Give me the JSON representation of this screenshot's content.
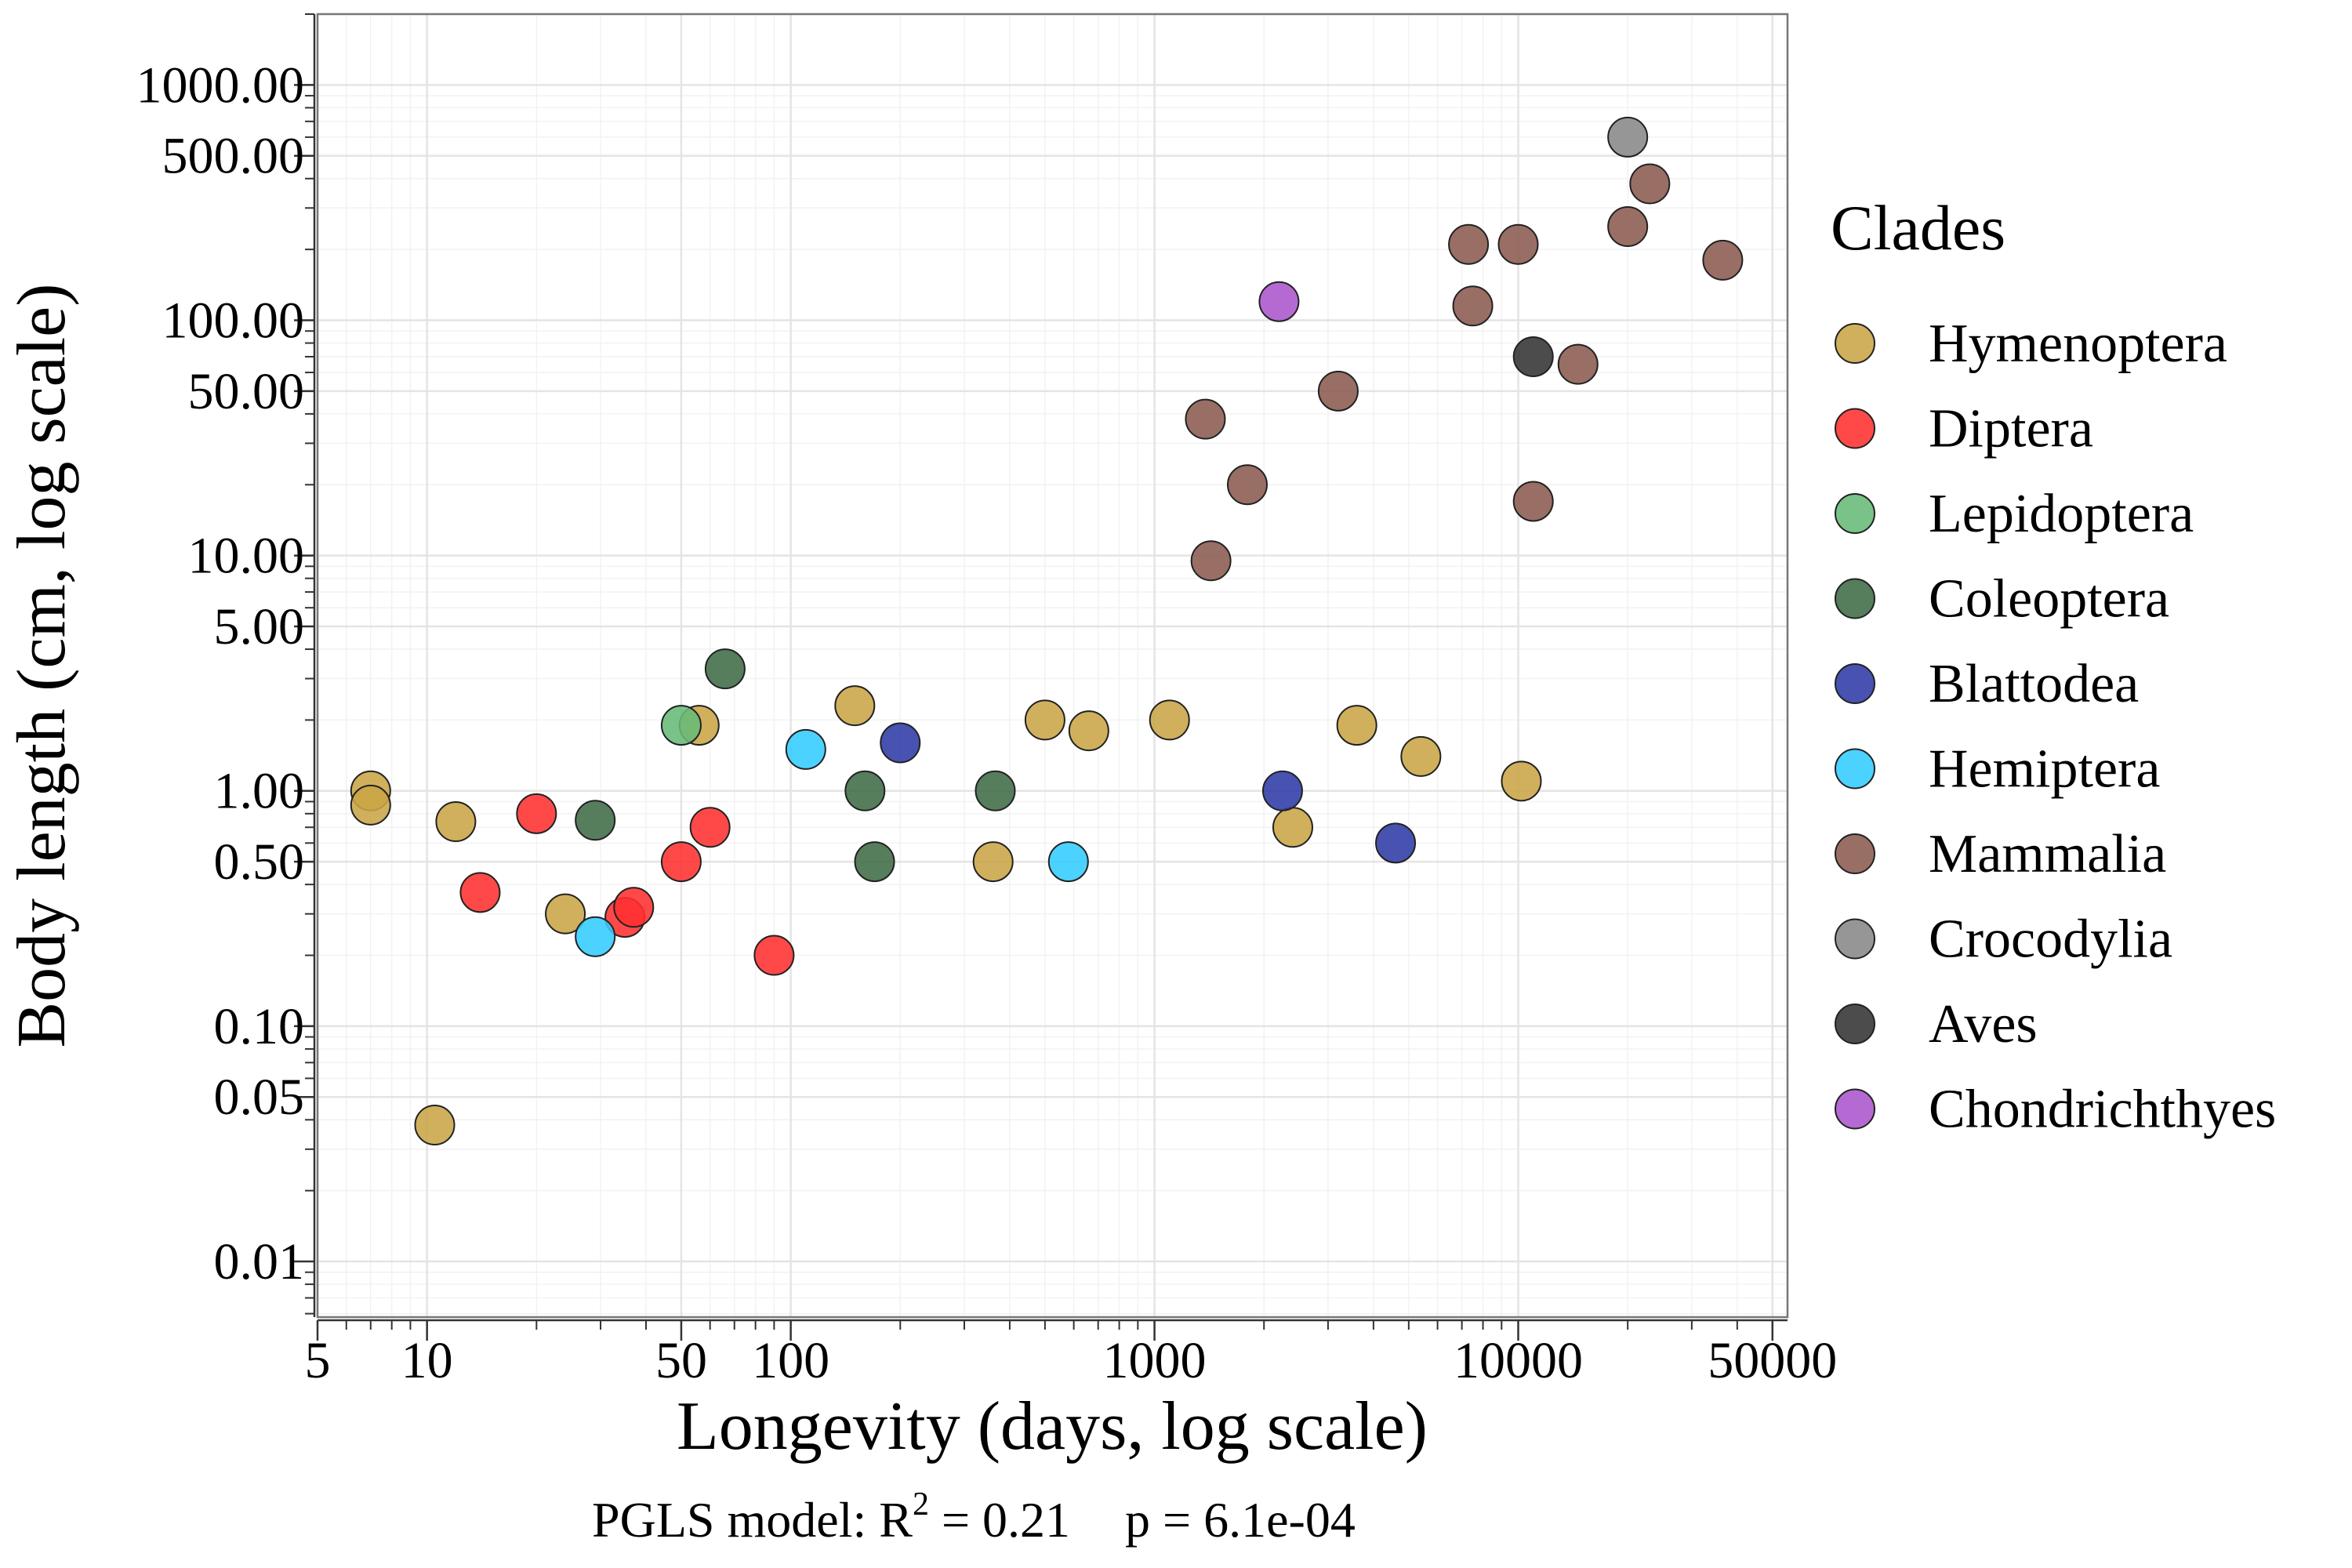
{
  "chart_data": {
    "type": "scatter",
    "xlabel": "Longevity (days, log scale)",
    "ylabel": "Body length (cm, log scale)",
    "x_scale": "log",
    "y_scale": "log",
    "xlim": [
      5,
      55000
    ],
    "ylim": [
      0.0058,
      2000
    ],
    "x_ticks": [
      {
        "value": 5,
        "label": "5"
      },
      {
        "value": 10,
        "label": "10"
      },
      {
        "value": 50,
        "label": "50"
      },
      {
        "value": 100,
        "label": "100"
      },
      {
        "value": 1000,
        "label": "1000"
      },
      {
        "value": 10000,
        "label": "10000"
      },
      {
        "value": 50000,
        "label": "50000"
      }
    ],
    "y_ticks": [
      {
        "value": 0.01,
        "label": "0.01"
      },
      {
        "value": 0.05,
        "label": "0.05"
      },
      {
        "value": 0.1,
        "label": "0.10"
      },
      {
        "value": 0.5,
        "label": "0.50"
      },
      {
        "value": 1,
        "label": "1.00"
      },
      {
        "value": 5,
        "label": "5.00"
      },
      {
        "value": 10,
        "label": "10.00"
      },
      {
        "value": 50,
        "label": "50.00"
      },
      {
        "value": 100,
        "label": "100.00"
      },
      {
        "value": 500,
        "label": "500.00"
      },
      {
        "value": 1000,
        "label": "1000.00"
      }
    ],
    "grid": true,
    "legend_title": "Clades",
    "legend_position": "right",
    "subtitle": {
      "prefix": "PGLS model: R",
      "superscript": "2",
      "suffix": " = 0.21",
      "p_value": "p = 6.1e-04"
    },
    "series": [
      {
        "name": "Hymenoptera",
        "color": "#C9A545",
        "points": [
          [
            7,
            1.0
          ],
          [
            7,
            0.87
          ],
          [
            10.5,
            0.038
          ],
          [
            12,
            0.74
          ],
          [
            24,
            0.3
          ],
          [
            56,
            1.9
          ],
          [
            150,
            2.3
          ],
          [
            360,
            0.5
          ],
          [
            500,
            2.0
          ],
          [
            660,
            1.8
          ],
          [
            1100,
            2.0
          ],
          [
            2400,
            0.7
          ],
          [
            3600,
            1.9
          ],
          [
            5400,
            1.4
          ],
          [
            10200,
            1.1
          ]
        ]
      },
      {
        "name": "Diptera",
        "color": "#FF3030",
        "points": [
          [
            14,
            0.37
          ],
          [
            20,
            0.8
          ],
          [
            35,
            0.29
          ],
          [
            37,
            0.32
          ],
          [
            50,
            0.5
          ],
          [
            60,
            0.7
          ],
          [
            90,
            0.2
          ]
        ]
      },
      {
        "name": "Lepidoptera",
        "color": "#66BB77",
        "points": [
          [
            50,
            1.9
          ]
        ]
      },
      {
        "name": "Coleoptera",
        "color": "#3F6B45",
        "points": [
          [
            29,
            0.75
          ],
          [
            66,
            3.3
          ],
          [
            160,
            1.0
          ],
          [
            170,
            0.5
          ],
          [
            365,
            1.0
          ]
        ]
      },
      {
        "name": "Blattodea",
        "color": "#2E3AA6",
        "points": [
          [
            200,
            1.6
          ],
          [
            2250,
            1.0
          ],
          [
            4600,
            0.6
          ]
        ]
      },
      {
        "name": "Hemiptera",
        "color": "#33CCFF",
        "points": [
          [
            29,
            0.24
          ],
          [
            110,
            1.5
          ],
          [
            580,
            0.5
          ]
        ]
      },
      {
        "name": "Mammalia",
        "color": "#8B5A50",
        "points": [
          [
            1380,
            38
          ],
          [
            1430,
            9.5
          ],
          [
            1800,
            20
          ],
          [
            3200,
            50
          ],
          [
            7300,
            210
          ],
          [
            7500,
            115
          ],
          [
            10000,
            210
          ],
          [
            11000,
            17
          ],
          [
            14600,
            65
          ],
          [
            20000,
            250
          ],
          [
            23000,
            380
          ],
          [
            36500,
            180
          ]
        ]
      },
      {
        "name": "Crocodylia",
        "color": "#888888",
        "points": [
          [
            20000,
            600
          ]
        ]
      },
      {
        "name": "Aves",
        "color": "#333333",
        "points": [
          [
            11000,
            70
          ]
        ]
      },
      {
        "name": "Chondrichthyes",
        "color": "#AA55CC",
        "points": [
          [
            2200,
            120
          ]
        ]
      }
    ]
  }
}
